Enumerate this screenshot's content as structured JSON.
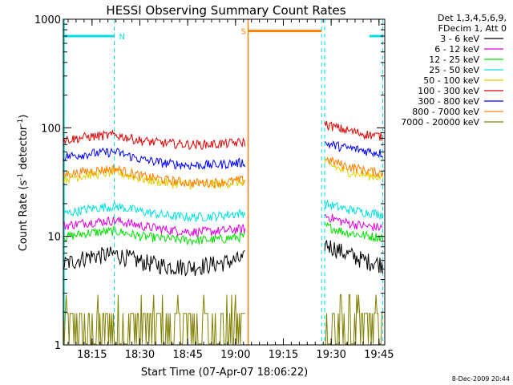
{
  "chart_data": {
    "type": "line",
    "title": "HESSI Observing Summary Count Rates",
    "xlabel": "Start Time (07-Apr-07 18:06:22)",
    "ylabel_main": "Count Rate (s",
    "ylabel_sup1": "-1",
    "ylabel_mid": " detector",
    "ylabel_sup2": "-1",
    "ylabel_end": ")",
    "yscale": "log",
    "ylim": [
      1,
      1000
    ],
    "xlim_minutes": [
      18.1,
      19.78
    ],
    "x_ticks": [
      {
        "label": "18:15",
        "t": 18.25
      },
      {
        "label": "18:30",
        "t": 18.5
      },
      {
        "label": "18:45",
        "t": 18.75
      },
      {
        "label": "19:00",
        "t": 19.0
      },
      {
        "label": "19:15",
        "t": 19.25
      },
      {
        "label": "19:30",
        "t": 19.5
      },
      {
        "label": "19:45",
        "t": 19.75
      }
    ],
    "y_ticks": [
      {
        "label": "1",
        "v": 1
      },
      {
        "label": "10",
        "v": 10
      },
      {
        "label": "100",
        "v": 100
      },
      {
        "label": "1000",
        "v": 1000
      }
    ],
    "legend_header": [
      "Det 1,3,4,5,6,9,",
      "FDecim 1, Att 0"
    ],
    "series": [
      {
        "name": "3 - 6 keV",
        "color": "#000000",
        "seg1": [
          5.5,
          6.5,
          6.8,
          5.8,
          5.3,
          5.2,
          5.6,
          6.2
        ],
        "seg2": [
          8.5,
          7.0,
          6.0,
          5.5
        ]
      },
      {
        "name": "6 - 12 keV",
        "color": "#e000e0",
        "seg1": [
          12.5,
          13.5,
          14.0,
          12.5,
          11.5,
          11.0,
          11.2,
          11.8
        ],
        "seg2": [
          15.5,
          13.5,
          12.5,
          12.0
        ]
      },
      {
        "name": "12 - 25 keV",
        "color": "#00e000",
        "seg1": [
          9.8,
          10.8,
          11.2,
          10.0,
          9.5,
          9.2,
          9.4,
          10.0
        ],
        "seg2": [
          12.5,
          11.0,
          10.2,
          9.8
        ]
      },
      {
        "name": "25 - 50 keV",
        "color": "#00e0e0",
        "seg1": [
          16.0,
          18.0,
          19.0,
          17.0,
          15.5,
          15.0,
          15.5,
          16.5
        ],
        "seg2": [
          20.0,
          18.0,
          16.8,
          16.0
        ]
      },
      {
        "name": "50 - 100 keV",
        "color": "#e0d000",
        "seg1": [
          34.0,
          37.0,
          39.0,
          34.0,
          31.0,
          30.0,
          30.5,
          32.0
        ],
        "seg2": [
          48.0,
          40.0,
          37.0,
          35.0
        ]
      },
      {
        "name": "100 - 300 keV",
        "color": "#e00000",
        "seg1": [
          77.0,
          83.0,
          86.0,
          76.0,
          72.0,
          70.0,
          71.0,
          74.0
        ],
        "seg2": [
          108.0,
          96.0,
          88.0,
          83.0
        ]
      },
      {
        "name": "300 - 800 keV",
        "color": "#0000ff",
        "seg1": [
          54.0,
          58.0,
          60.0,
          51.0,
          47.0,
          45.0,
          46.0,
          48.0
        ],
        "seg2": [
          72.0,
          66.0,
          62.0,
          58.0
        ]
      },
      {
        "name": "800 - 7000 keV",
        "color": "#ff8000",
        "seg1": [
          37.0,
          40.0,
          42.0,
          36.0,
          33.0,
          31.0,
          31.5,
          33.0
        ],
        "seg2": [
          52.0,
          45.0,
          41.0,
          38.0
        ]
      },
      {
        "name": "7000 - 20000 keV",
        "color": "#808000",
        "seg1": [
          1.8,
          1.8,
          1.8,
          1.8,
          1.8,
          1.8,
          1.8,
          1.8
        ],
        "seg2": [
          1.8,
          1.8,
          1.8,
          1.8
        ]
      }
    ],
    "intervals": [
      {
        "kind": "night",
        "color": "#00e0e0",
        "label": "N",
        "start": 18.1,
        "end": 18.366,
        "level": 700
      },
      {
        "kind": "night",
        "color": "#00e0e0",
        "label": "",
        "start": 19.7,
        "end": 19.77,
        "level": 700
      },
      {
        "kind": "saa",
        "color": "#ff8000",
        "label": "S",
        "start": 19.066,
        "end": 19.45,
        "level": 780
      }
    ],
    "data_segments": [
      [
        18.1,
        19.05
      ],
      [
        19.466,
        19.77
      ]
    ],
    "verticals_cyan": [
      18.366,
      19.45,
      19.466,
      19.77
    ],
    "vertical_orange": 19.066,
    "vertical_cyan_solid": 18.1
  },
  "footer_date": "8-Dec-2009 20:44"
}
